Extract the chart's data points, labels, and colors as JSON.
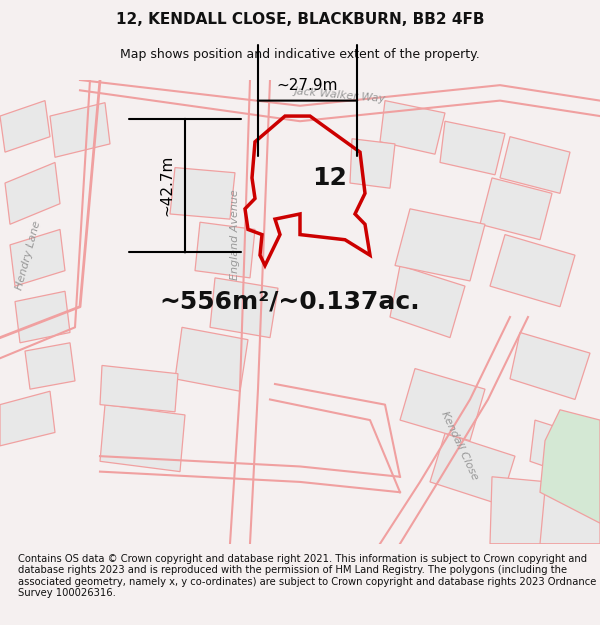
{
  "title": "12, KENDALL CLOSE, BLACKBURN, BB2 4FB",
  "subtitle": "Map shows position and indicative extent of the property.",
  "footer": "Contains OS data © Crown copyright and database right 2021. This information is subject to Crown copyright and database rights 2023 and is reproduced with the permission of HM Land Registry. The polygons (including the associated geometry, namely x, y co-ordinates) are subject to Crown copyright and database rights 2023 Ordnance Survey 100026316.",
  "area_text": "~556m²/~0.137ac.",
  "label_number": "12",
  "dim_width": "~27.9m",
  "dim_height": "~42.7m",
  "bg_color": "#f5f0f0",
  "map_bg": "#ffffff",
  "road_stroke": "#f0a0a0",
  "plot_stroke": "#cc0000",
  "green_fill": "#d4e8d4",
  "building_fill": "#e8e8e8",
  "title_fontsize": 11,
  "subtitle_fontsize": 9,
  "footer_fontsize": 7.2,
  "label_fontsize": 18,
  "area_fontsize": 18,
  "dim_fontsize": 11,
  "street_fontsize": 8,
  "figsize": [
    6.0,
    6.25
  ],
  "dpi": 100
}
